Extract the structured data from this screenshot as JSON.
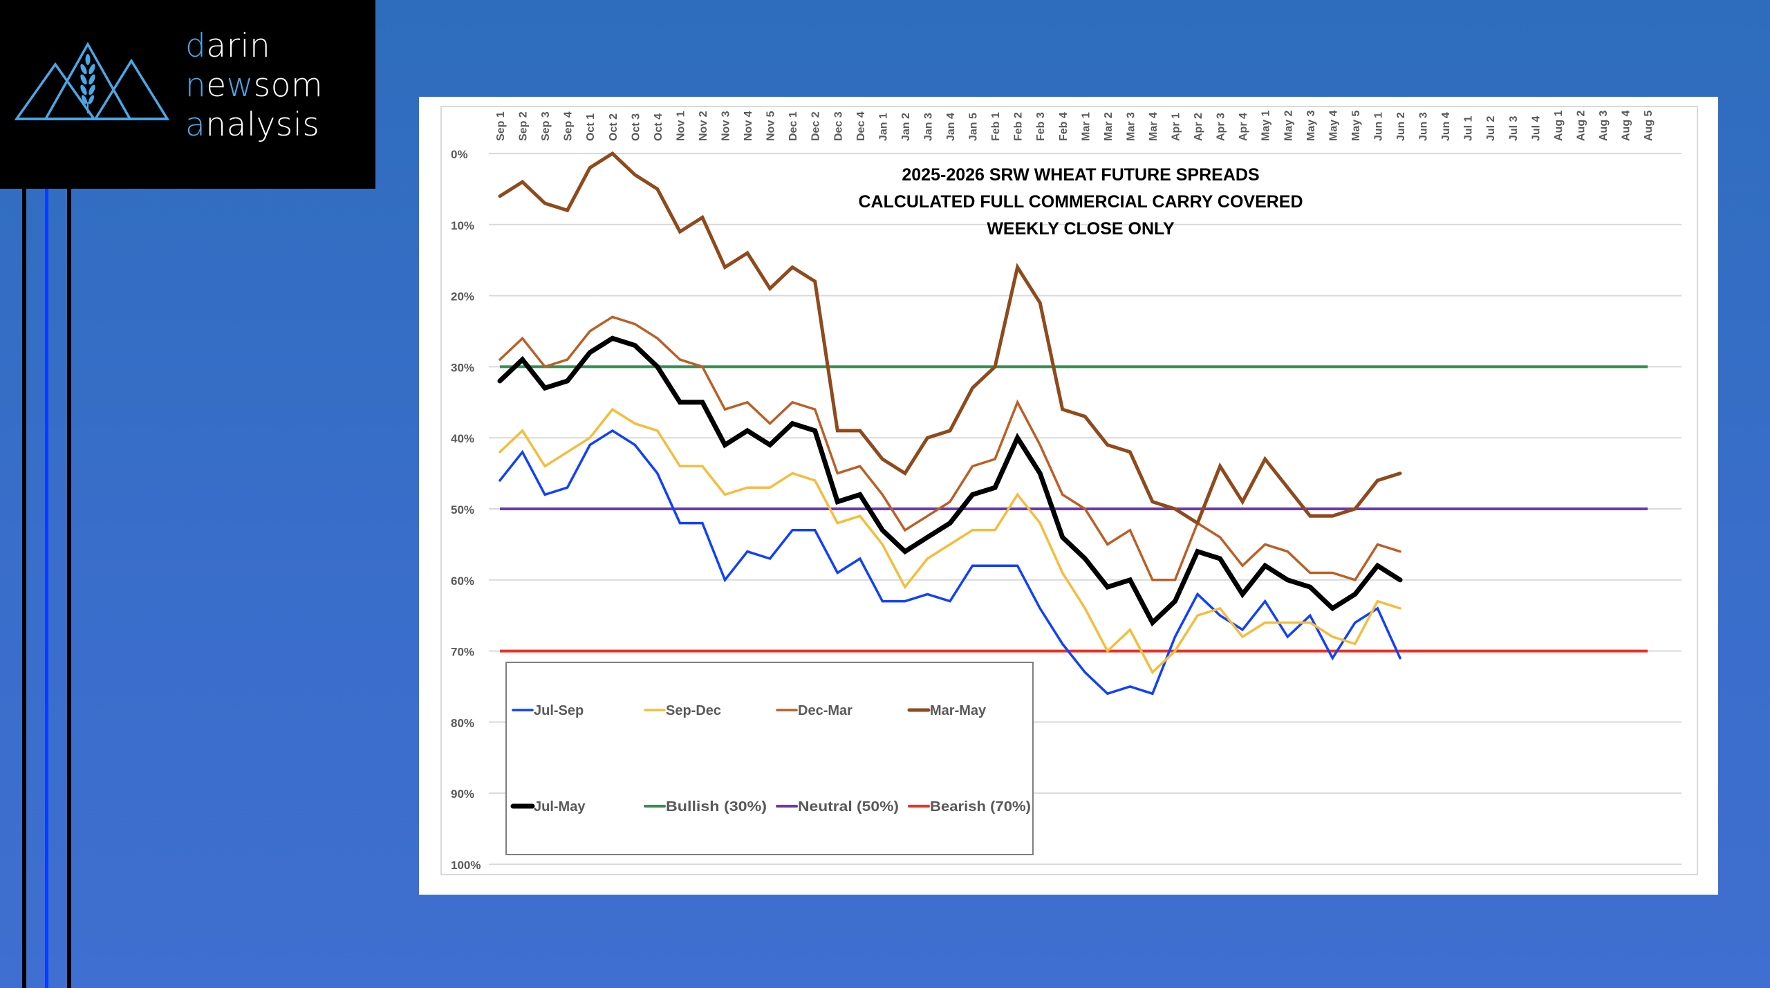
{
  "brand": {
    "lines": [
      {
        "accent": "d",
        "rest": "arin"
      },
      {
        "accent": "n",
        "mid": "e",
        "accent2": "w",
        "rest": "som"
      },
      {
        "accent": "a",
        "rest": "nalysis"
      }
    ],
    "full_name": "darin newsom analysis",
    "accent_color": "#4aa8e8",
    "logo_icon": "mountains-wheat-icon"
  },
  "colors": {
    "background_top": "#2e6dbd",
    "background_bottom": "#3f6fd0",
    "logo_bg": "#000000",
    "bar_dark": "#000000",
    "bar_blue": "#0a3cff"
  },
  "chart_data": {
    "type": "line",
    "title_lines": [
      "2025-2026 SRW WHEAT FUTURE SPREADS",
      "CALCULATED FULL COMMERCIAL CARRY COVERED",
      "WEEKLY CLOSE ONLY"
    ],
    "xlabel": "",
    "ylabel": "",
    "y_inverted": true,
    "ylim": [
      0,
      100
    ],
    "y_ticks": [
      "0%",
      "10%",
      "20%",
      "30%",
      "40%",
      "50%",
      "60%",
      "70%",
      "80%",
      "90%",
      "100%"
    ],
    "y_tick_values": [
      0,
      10,
      20,
      30,
      40,
      50,
      60,
      70,
      80,
      90,
      100
    ],
    "grid": true,
    "legend_position": "bottom-left",
    "categories": [
      "Sep 1",
      "Sep 2",
      "Sep 3",
      "Sep 4",
      "Oct 1",
      "Oct 2",
      "Oct 3",
      "Oct 4",
      "Nov 1",
      "Nov 2",
      "Nov 3",
      "Nov 4",
      "Nov 5",
      "Dec 1",
      "Dec 2",
      "Dec 3",
      "Dec 4",
      "Jan 1",
      "Jan 2",
      "Jan 3",
      "Jan 4",
      "Jan 5",
      "Feb 1",
      "Feb 2",
      "Feb 3",
      "Feb 4",
      "Mar 1",
      "Mar 2",
      "Mar 3",
      "Mar 4",
      "Apr 1",
      "Apr 2",
      "Apr 3",
      "Apr 4",
      "May 1",
      "May 2",
      "May 3",
      "May 4",
      "May 5",
      "Jun 1",
      "Jun 2",
      "Jun 3",
      "Jun 4",
      "Jul 1",
      "Jul 2",
      "Jul 3",
      "Jul 4",
      "Aug 1",
      "Aug 2",
      "Aug 3",
      "Aug 4",
      "Aug 5"
    ],
    "series": [
      {
        "name": "Jul-Sep",
        "color": "#1040ff",
        "width": "thin",
        "values": [
          46,
          42,
          48,
          47,
          41,
          39,
          41,
          45,
          52,
          52,
          60,
          56,
          57,
          53,
          53,
          59,
          57,
          63,
          63,
          62,
          63,
          58,
          58,
          58,
          64,
          69,
          73,
          76,
          75,
          76,
          68,
          62,
          65,
          67,
          63,
          68,
          65,
          71,
          66,
          64,
          71
        ]
      },
      {
        "name": "Sep-Dec",
        "color": "#f5bd3c",
        "width": "thin",
        "values": [
          42,
          39,
          44,
          42,
          40,
          36,
          38,
          39,
          44,
          44,
          48,
          47,
          47,
          45,
          46,
          52,
          51,
          55,
          61,
          57,
          55,
          53,
          53,
          48,
          52,
          59,
          64,
          70,
          67,
          73,
          70,
          65,
          64,
          68,
          66,
          66,
          66,
          68,
          69,
          63,
          64
        ]
      },
      {
        "name": "Dec-Mar",
        "color": "#bb5f26",
        "width": "thin",
        "values": [
          29,
          26,
          30,
          29,
          25,
          23,
          24,
          26,
          29,
          30,
          36,
          35,
          38,
          35,
          36,
          45,
          44,
          48,
          53,
          51,
          49,
          44,
          43,
          35,
          41,
          48,
          50,
          55,
          53,
          60,
          60,
          52,
          54,
          58,
          55,
          56,
          59,
          59,
          60,
          55,
          56
        ]
      },
      {
        "name": "Mar-May",
        "color": "#8f4a1c",
        "width": "medium",
        "values": [
          6,
          4,
          7,
          8,
          2,
          0,
          3,
          5,
          11,
          9,
          16,
          14,
          19,
          16,
          18,
          39,
          39,
          43,
          45,
          40,
          39,
          33,
          30,
          16,
          21,
          36,
          37,
          41,
          42,
          49,
          50,
          52,
          44,
          49,
          43,
          47,
          51,
          51,
          50,
          46,
          45
        ]
      },
      {
        "name": "Jul-May",
        "color": "#000000",
        "width": "thick",
        "values": [
          32,
          29,
          33,
          32,
          28,
          26,
          27,
          30,
          35,
          35,
          41,
          39,
          41,
          38,
          39,
          49,
          48,
          53,
          56,
          54,
          52,
          48,
          47,
          40,
          45,
          54,
          57,
          61,
          60,
          66,
          63,
          56,
          57,
          62,
          58,
          60,
          61,
          64,
          62,
          58,
          60
        ]
      }
    ],
    "reference_lines": [
      {
        "name": "Bullish (30%)",
        "value": 30,
        "color": "#3a8a55"
      },
      {
        "name": "Neutral (50%)",
        "value": 50,
        "color": "#6a3aa8"
      },
      {
        "name": "Bearish (70%)",
        "value": 70,
        "color": "#ee3024"
      }
    ],
    "legend_order": [
      "Jul-Sep",
      "Sep-Dec",
      "Dec-Mar",
      "Mar-May",
      "Jul-May",
      "Bullish (30%)",
      "Neutral (50%)",
      "Bearish (70%)"
    ]
  }
}
